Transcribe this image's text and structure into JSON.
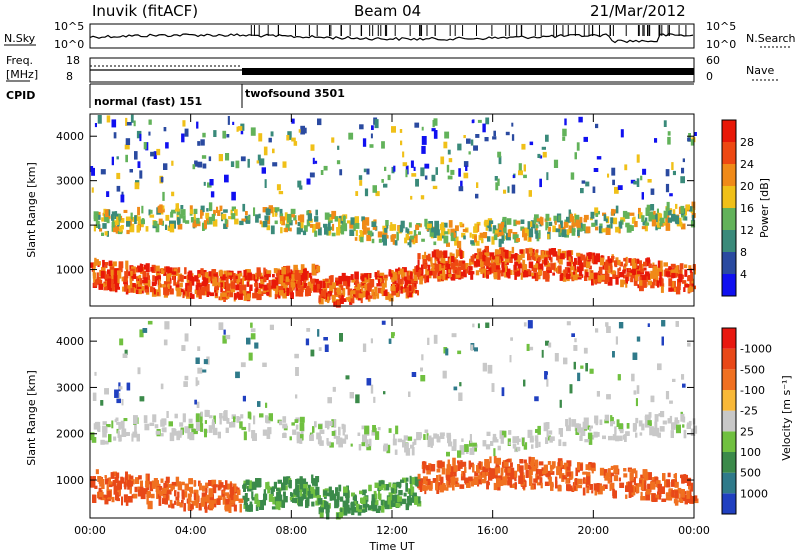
{
  "header": {
    "station": "Inuvik (fitACF)",
    "beam": "Beam 04",
    "date": "21/Mar/2012"
  },
  "chart_data": [
    {
      "panel": "noise-sky-search",
      "type": "line",
      "left_label": "N.Sky",
      "right_label": "N.Search",
      "left_ticks": [
        "10^5",
        "10^0"
      ],
      "right_ticks": [
        "10^5",
        "10^0"
      ]
    },
    {
      "panel": "frequency-nave",
      "type": "line",
      "left_label_1": "Freq.",
      "left_label_2": "[MHz]",
      "right_label": "Nave",
      "left_ticks": [
        "18",
        "8"
      ],
      "right_ticks": [
        "60",
        "0"
      ]
    },
    {
      "panel": "cpid",
      "type": "table",
      "label": "CPID",
      "segments": [
        {
          "name": "normal (fast) 151",
          "start_hour": 0,
          "end_hour": 6
        },
        {
          "name": "twofsound 3501",
          "start_hour": 6,
          "end_hour": 24
        }
      ]
    },
    {
      "panel": "power",
      "type": "heatmap",
      "ylabel": "Slant Range [km]",
      "ylim": [
        180,
        4500
      ],
      "yticks": [
        1000,
        2000,
        3000,
        4000
      ],
      "xlim": [
        0,
        24
      ],
      "colorbar_label": "Power [dB]",
      "colorbar_ticks": [
        "4",
        "8",
        "12",
        "16",
        "20",
        "24",
        "28"
      ],
      "colorbar_colors": [
        "#1010f0",
        "#2a4aa0",
        "#3a8a7a",
        "#62b25a",
        "#f0c018",
        "#f08a18",
        "#ee4812",
        "#e81808"
      ]
    },
    {
      "panel": "velocity",
      "type": "heatmap",
      "ylabel": "Slant Range [km]",
      "ylim": [
        180,
        4500
      ],
      "yticks": [
        1000,
        2000,
        3000,
        4000
      ],
      "xlim": [
        0,
        24
      ],
      "xlabel": "Time UT",
      "xticks": [
        "00:00",
        "04:00",
        "08:00",
        "12:00",
        "16:00",
        "20:00",
        "00:00"
      ],
      "colorbar_label": "Velocity [m s⁻¹]",
      "colorbar_ticks": [
        "1000",
        "500",
        "100",
        "25",
        "-25",
        "-100",
        "-500",
        "-1000"
      ],
      "colorbar_colors": [
        "#2040c0",
        "#2f7a8a",
        "#3b8a4a",
        "#70c040",
        "#c8c8c8",
        "#f8b838",
        "#f07020",
        "#e84818",
        "#e81810"
      ]
    }
  ]
}
